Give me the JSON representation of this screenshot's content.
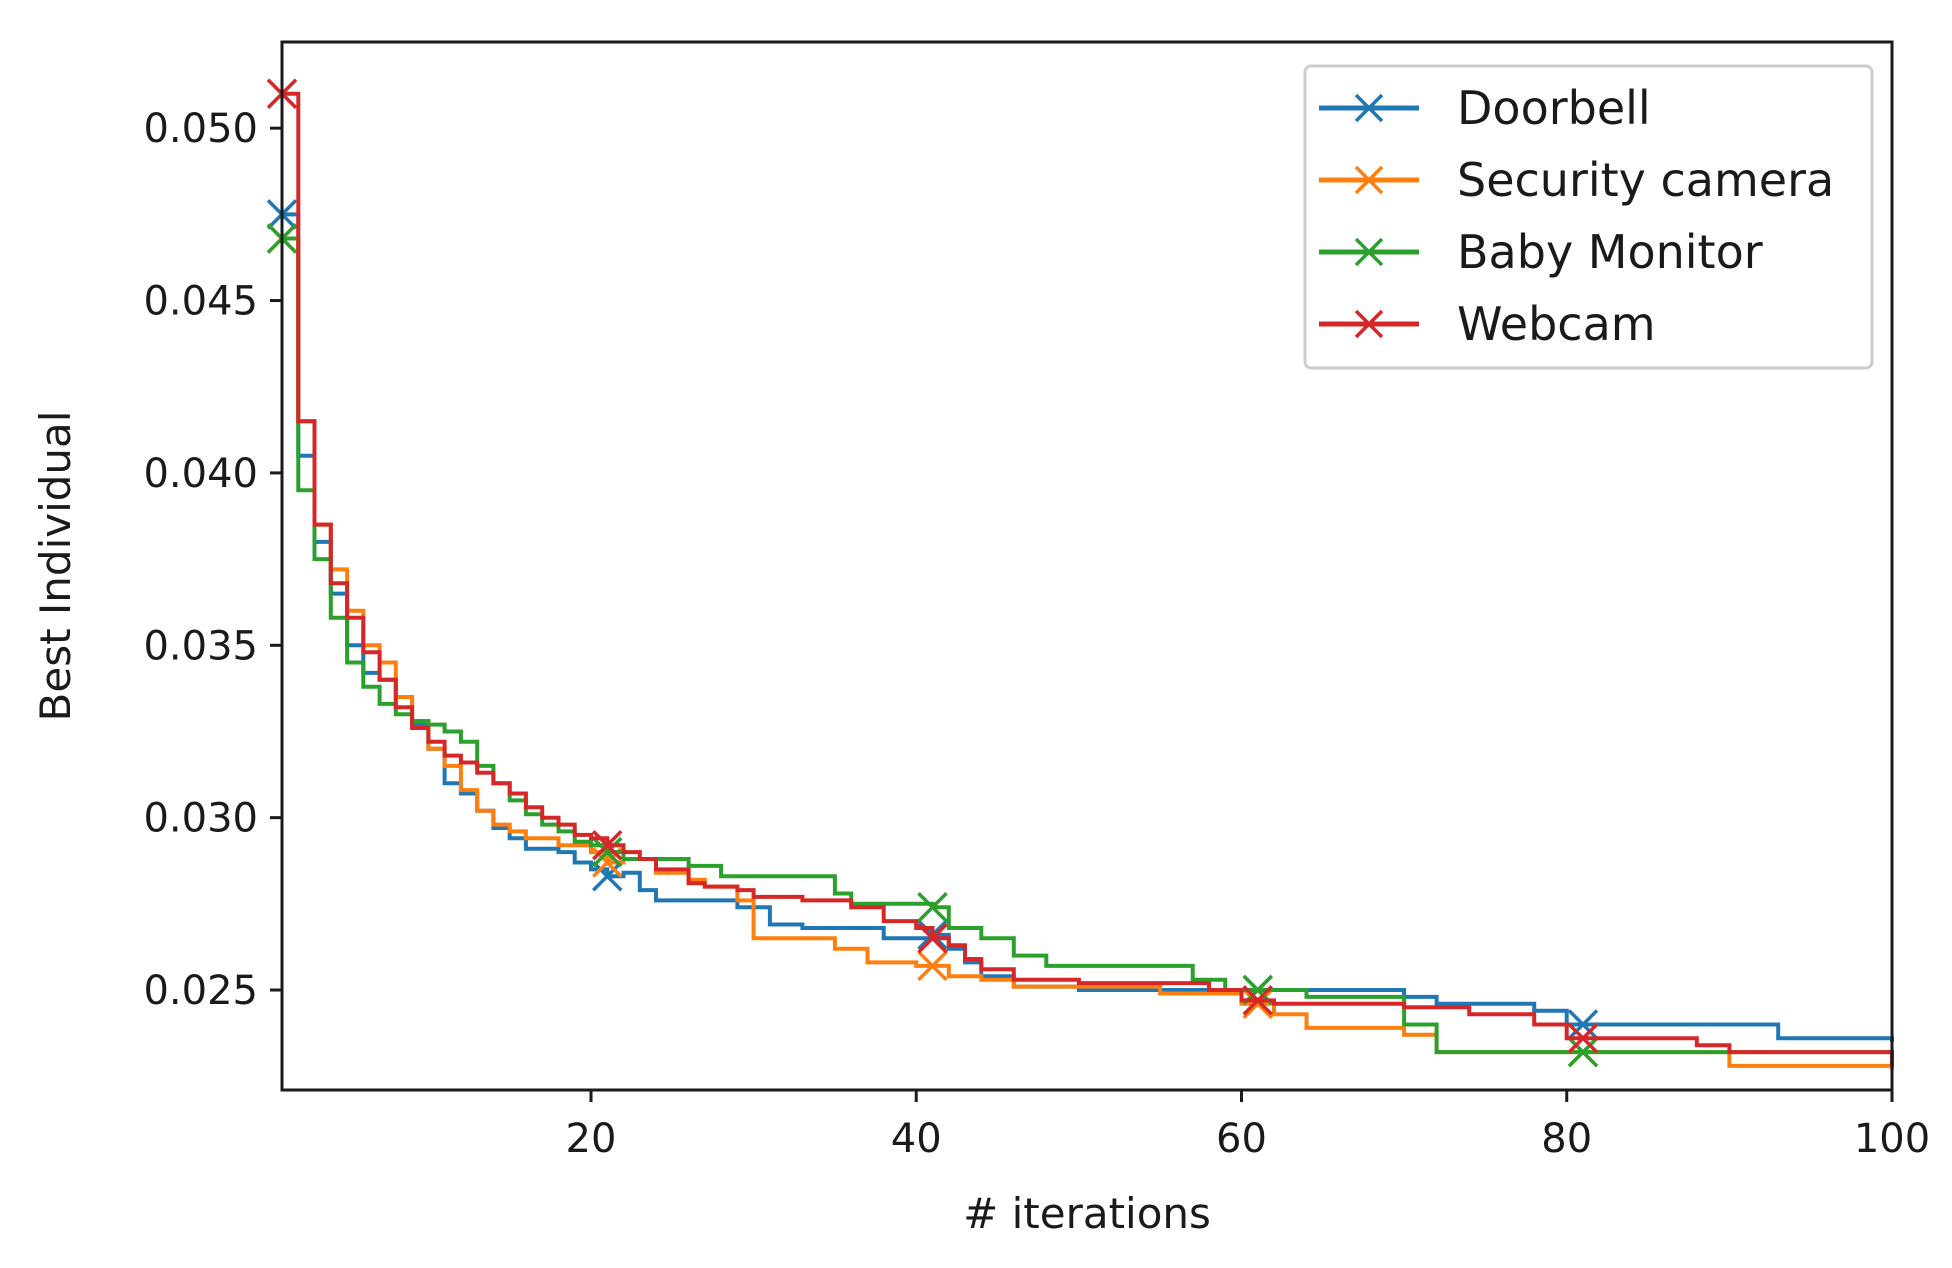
{
  "chart_data": {
    "type": "line",
    "title": "",
    "xlabel": "# iterations",
    "ylabel": "Best Individual",
    "xlim": [
      1,
      100
    ],
    "ylim": [
      0.0221,
      0.0525
    ],
    "xticks": [
      20,
      40,
      60,
      80,
      100
    ],
    "xtick_labels": [
      "20",
      "40",
      "60",
      "80",
      "100"
    ],
    "yticks": [
      0.025,
      0.03,
      0.035,
      0.04,
      0.045,
      0.05
    ],
    "ytick_labels": [
      "0.025",
      "0.030",
      "0.035",
      "0.040",
      "0.045",
      "0.050"
    ],
    "grid": false,
    "legend_position": "top-right",
    "marker_every": [
      1,
      21,
      41,
      61,
      81
    ],
    "series": [
      {
        "name": "Doorbell",
        "color": "#1f77b4",
        "x": [
          1,
          2,
          3,
          4,
          5,
          6,
          7,
          8,
          9,
          10,
          11,
          12,
          13,
          14,
          15,
          16,
          17,
          18,
          19,
          20,
          21,
          22,
          23,
          24,
          26,
          28,
          29,
          31,
          33,
          35,
          38,
          41,
          42,
          43,
          44,
          46,
          50,
          60,
          63,
          70,
          72,
          78,
          80,
          82,
          93,
          100
        ],
        "y": [
          0.0475,
          0.0405,
          0.038,
          0.0365,
          0.035,
          0.0342,
          0.034,
          0.0335,
          0.0327,
          0.032,
          0.031,
          0.0307,
          0.0302,
          0.0297,
          0.0294,
          0.0291,
          0.0291,
          0.029,
          0.0287,
          0.0285,
          0.0283,
          0.0284,
          0.0279,
          0.0276,
          0.0276,
          0.0276,
          0.0274,
          0.0269,
          0.0268,
          0.0268,
          0.0265,
          0.0266,
          0.0262,
          0.0258,
          0.0254,
          0.0251,
          0.025,
          0.025,
          0.025,
          0.0248,
          0.0246,
          0.0244,
          0.024,
          0.024,
          0.0236,
          0.0235
        ]
      },
      {
        "name": "Security camera",
        "color": "#ff7f0e",
        "x": [
          1,
          2,
          3,
          4,
          5,
          6,
          7,
          8,
          9,
          10,
          11,
          12,
          13,
          14,
          15,
          16,
          17,
          18,
          19,
          20,
          21,
          22,
          24,
          26,
          27,
          29,
          30,
          34,
          35,
          37,
          40,
          42,
          44,
          46,
          50,
          55,
          60,
          62,
          64,
          70,
          72,
          80,
          90,
          100
        ],
        "y": [
          0.0468,
          0.0415,
          0.0385,
          0.0372,
          0.036,
          0.035,
          0.0345,
          0.0335,
          0.0328,
          0.032,
          0.0315,
          0.0308,
          0.0302,
          0.0298,
          0.0296,
          0.0294,
          0.0294,
          0.0292,
          0.0292,
          0.029,
          0.0287,
          0.0288,
          0.0284,
          0.0282,
          0.028,
          0.0276,
          0.0265,
          0.0265,
          0.0262,
          0.0258,
          0.0257,
          0.0254,
          0.0253,
          0.0251,
          0.0251,
          0.0249,
          0.0246,
          0.0243,
          0.0239,
          0.0237,
          0.0232,
          0.0232,
          0.0228,
          0.0227
        ]
      },
      {
        "name": "Baby Monitor",
        "color": "#2ca02c",
        "x": [
          1,
          2,
          3,
          4,
          5,
          6,
          7,
          8,
          9,
          10,
          11,
          12,
          13,
          14,
          15,
          16,
          17,
          18,
          19,
          20,
          21,
          22,
          26,
          28,
          30,
          35,
          36,
          41,
          42,
          44,
          46,
          48,
          54,
          57,
          59,
          64,
          70,
          72,
          80,
          88,
          100
        ],
        "y": [
          0.0468,
          0.0395,
          0.0375,
          0.0358,
          0.0345,
          0.0338,
          0.0333,
          0.033,
          0.0328,
          0.0327,
          0.0325,
          0.0322,
          0.0315,
          0.031,
          0.0305,
          0.0301,
          0.0298,
          0.0296,
          0.0293,
          0.0292,
          0.029,
          0.0288,
          0.0286,
          0.0283,
          0.0283,
          0.0278,
          0.0275,
          0.0274,
          0.0268,
          0.0265,
          0.026,
          0.0257,
          0.0257,
          0.0253,
          0.025,
          0.0248,
          0.024,
          0.0232,
          0.0232,
          0.0232,
          0.0229
        ]
      },
      {
        "name": "Webcam",
        "color": "#d62728",
        "x": [
          1,
          2,
          3,
          4,
          5,
          6,
          7,
          8,
          9,
          10,
          11,
          12,
          13,
          14,
          15,
          16,
          17,
          18,
          19,
          20,
          21,
          22,
          23,
          24,
          26,
          27,
          29,
          30,
          33,
          36,
          38,
          40,
          41,
          42,
          43,
          44,
          46,
          50,
          58,
          60,
          62,
          66,
          70,
          74,
          78,
          80,
          88,
          90,
          100
        ],
        "y": [
          0.051,
          0.0415,
          0.0385,
          0.0368,
          0.0358,
          0.0348,
          0.034,
          0.0332,
          0.0326,
          0.0322,
          0.0318,
          0.0316,
          0.0313,
          0.031,
          0.0307,
          0.0303,
          0.03,
          0.0298,
          0.0295,
          0.0294,
          0.0292,
          0.029,
          0.0288,
          0.0285,
          0.0281,
          0.028,
          0.0279,
          0.0277,
          0.0276,
          0.0274,
          0.027,
          0.0268,
          0.0265,
          0.0263,
          0.0259,
          0.0256,
          0.0253,
          0.0252,
          0.025,
          0.0247,
          0.0246,
          0.0246,
          0.0245,
          0.0243,
          0.024,
          0.0236,
          0.0234,
          0.0232,
          0.0228
        ]
      }
    ]
  }
}
